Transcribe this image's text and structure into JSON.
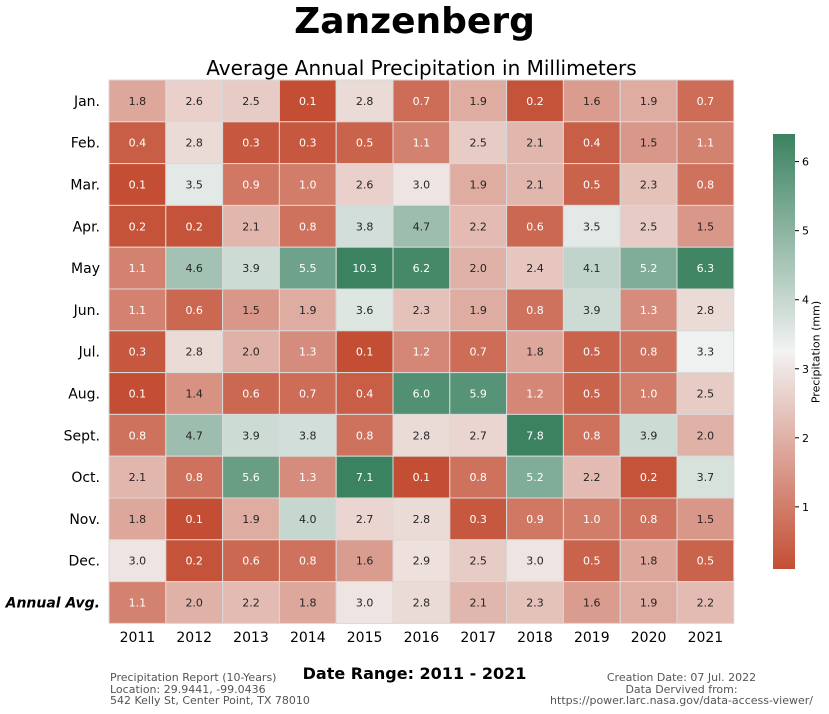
{
  "page": {
    "title": "Zanzenberg",
    "subtitle": "Average Annual Precipitation in Millimeters",
    "date_range": "Date Range: 2011 - 2021",
    "footer_left": [
      "Precipitation Report (10-Years)",
      "Location: 29.9441, -99.0436",
      "542 Kelly St, Center Point, TX 78010"
    ],
    "footer_right": [
      "Creation Date: 07 Jul. 2022",
      "Data Dervived from:",
      "https://power.larc.nasa.gov/data-access-viewer/"
    ]
  },
  "chart_data": {
    "type": "heatmap",
    "title": "Average Annual Precipitation in Millimeters",
    "columns": [
      "2011",
      "2012",
      "2013",
      "2014",
      "2015",
      "2016",
      "2017",
      "2018",
      "2019",
      "2020",
      "2021"
    ],
    "rows": [
      "Jan.",
      "Feb.",
      "Mar.",
      "Apr.",
      "May",
      "Jun.",
      "Jul.",
      "Aug.",
      "Sept.",
      "Oct.",
      "Nov.",
      "Dec.",
      "Annual Avg."
    ],
    "values": [
      [
        1.8,
        2.6,
        2.5,
        0.1,
        2.8,
        0.7,
        1.9,
        0.2,
        1.6,
        1.9,
        0.7
      ],
      [
        0.4,
        2.8,
        0.3,
        0.3,
        0.5,
        1.1,
        2.5,
        2.1,
        0.4,
        1.5,
        1.1
      ],
      [
        0.1,
        3.5,
        0.9,
        1.0,
        2.6,
        3.0,
        1.9,
        2.1,
        0.5,
        2.3,
        0.8
      ],
      [
        0.2,
        0.2,
        2.1,
        0.8,
        3.8,
        4.7,
        2.2,
        0.6,
        3.5,
        2.5,
        1.5
      ],
      [
        1.1,
        4.6,
        3.9,
        5.5,
        10.3,
        6.2,
        2.0,
        2.4,
        4.1,
        5.2,
        6.3
      ],
      [
        1.1,
        0.6,
        1.5,
        1.9,
        3.6,
        2.3,
        1.9,
        0.8,
        3.9,
        1.3,
        2.8
      ],
      [
        0.3,
        2.8,
        2.0,
        1.3,
        0.1,
        1.2,
        0.7,
        1.8,
        0.5,
        0.8,
        3.3
      ],
      [
        0.1,
        1.4,
        0.6,
        0.7,
        0.4,
        6.0,
        5.9,
        1.2,
        0.5,
        1.0,
        2.5
      ],
      [
        0.8,
        4.7,
        3.9,
        3.8,
        0.8,
        2.8,
        2.7,
        7.8,
        0.8,
        3.9,
        2.0
      ],
      [
        2.1,
        0.8,
        5.6,
        1.3,
        7.1,
        0.1,
        0.8,
        5.2,
        2.2,
        0.2,
        3.7
      ],
      [
        1.8,
        0.1,
        1.9,
        4.0,
        2.7,
        2.8,
        0.3,
        0.9,
        1.0,
        0.8,
        1.5
      ],
      [
        3.0,
        0.2,
        0.6,
        0.8,
        1.6,
        2.9,
        2.5,
        3.0,
        0.5,
        1.8,
        0.5
      ],
      [
        1.1,
        2.0,
        2.2,
        1.8,
        3.0,
        2.8,
        2.1,
        2.3,
        1.6,
        1.9,
        2.2
      ]
    ],
    "colorbar": {
      "label": "Precipitation (mm)",
      "min": 0.1,
      "max": 6.4,
      "ticks": [
        1,
        2,
        3,
        4,
        5,
        6
      ],
      "colors": {
        "low": "#c44e34",
        "mid": "#f2f2f2",
        "high": "#3a8260"
      }
    }
  }
}
